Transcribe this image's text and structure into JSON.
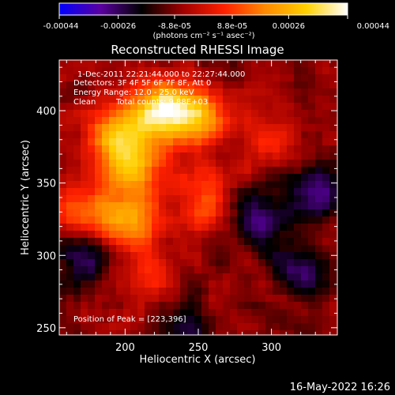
{
  "chart_data": {
    "type": "heatmap",
    "title": "Reconstructed RHESSI Image",
    "xlabel": "Heliocentric X (arcsec)",
    "ylabel": "Heliocentric Y (arcsec)",
    "xlim": [
      155,
      345
    ],
    "ylim": [
      245,
      435
    ],
    "x_ticks": [
      "200",
      "250",
      "300"
    ],
    "y_ticks": [
      "250",
      "300",
      "350",
      "400"
    ],
    "colorbar": {
      "ticks": [
        "-0.00044",
        "-0.00026",
        "-8.8e-05",
        "8.8e-05",
        "0.00026",
        "0.00044"
      ],
      "unit_label": "(photons cm⁻² s⁻¹ asec⁻²)",
      "range": [
        -0.00044,
        0.00044
      ],
      "colors": [
        "#0000ff",
        "#5a00a0",
        "#000000",
        "#a00000",
        "#ff2000",
        "#ff8a00",
        "#ffd000",
        "#ffffff"
      ]
    },
    "annotations": {
      "time": "1-Dec-2011 22:21:44.000 to 22:27:44.000",
      "detectors": "Detectors: 3F 4F 5F 6F 7F 8F, Att 0",
      "energy": "Energy Range: 12.0 - 25.0 keV",
      "method": "Clean",
      "counts": "Total counts: 9.88E+03",
      "peak": "Position of Peak = [223,396]"
    },
    "peak_position": [
      223,
      396
    ],
    "bright_regions": [
      {
        "x": 225,
        "y": 400,
        "value": 0.00044
      },
      {
        "x": 195,
        "y": 383,
        "value": 0.00035
      },
      {
        "x": 250,
        "y": 395,
        "value": 0.00032
      },
      {
        "x": 205,
        "y": 362,
        "value": 0.0003
      },
      {
        "x": 175,
        "y": 330,
        "value": 0.00026
      },
      {
        "x": 205,
        "y": 322,
        "value": 0.0003
      },
      {
        "x": 255,
        "y": 340,
        "value": 0.00022
      },
      {
        "x": 215,
        "y": 285,
        "value": 0.00015
      },
      {
        "x": 300,
        "y": 385,
        "value": 0.00012
      }
    ],
    "dim_regions": [
      {
        "x": 290,
        "y": 325,
        "value": -0.0002
      },
      {
        "x": 175,
        "y": 300,
        "value": -0.00022
      },
      {
        "x": 330,
        "y": 345,
        "value": -0.00018
      },
      {
        "x": 320,
        "y": 290,
        "value": -0.00015
      },
      {
        "x": 240,
        "y": 255,
        "value": -0.00012
      }
    ]
  },
  "footer": {
    "date": "16-May-2022 16:26"
  }
}
